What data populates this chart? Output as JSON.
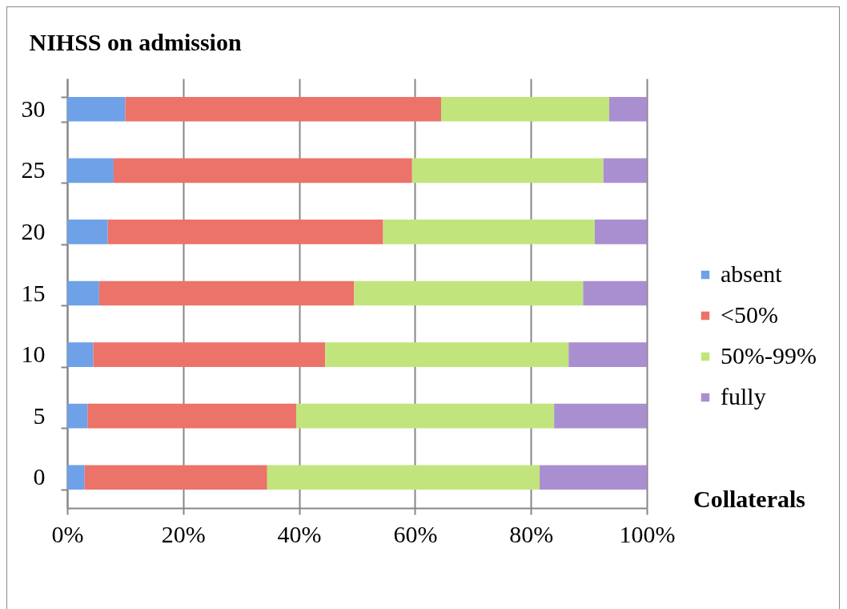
{
  "chart_data": {
    "type": "bar",
    "orientation": "horizontal",
    "stacked": true,
    "ylabel": "NIHSS on admission",
    "legend_title": "Collaterals",
    "categories": [
      "30",
      "25",
      "20",
      "15",
      "10",
      "5",
      "0"
    ],
    "series": [
      {
        "name": "absent",
        "color": "#6ea1e8",
        "values": [
          10,
          8,
          7,
          5.5,
          4.5,
          3.5,
          3
        ]
      },
      {
        "name": "<50%",
        "color": "#ec7369",
        "values": [
          54.5,
          51.5,
          47.5,
          44,
          40,
          36,
          31.5
        ]
      },
      {
        "name": "50%-99%",
        "color": "#c1e57c",
        "values": [
          29,
          33,
          36.5,
          39.5,
          42,
          44.5,
          47
        ]
      },
      {
        "name": "fully",
        "color": "#aa8fd0",
        "values": [
          6.5,
          7.5,
          9,
          11,
          13.5,
          16,
          18.5
        ]
      }
    ],
    "xlim": [
      0,
      100
    ],
    "xticks": [
      {
        "value": 0,
        "label": "0%"
      },
      {
        "value": 20,
        "label": "20%"
      },
      {
        "value": 40,
        "label": "40%"
      },
      {
        "value": 60,
        "label": "60%"
      },
      {
        "value": 80,
        "label": "80%"
      },
      {
        "value": 100,
        "label": "100%"
      }
    ],
    "grid": "x",
    "legend": "right"
  }
}
